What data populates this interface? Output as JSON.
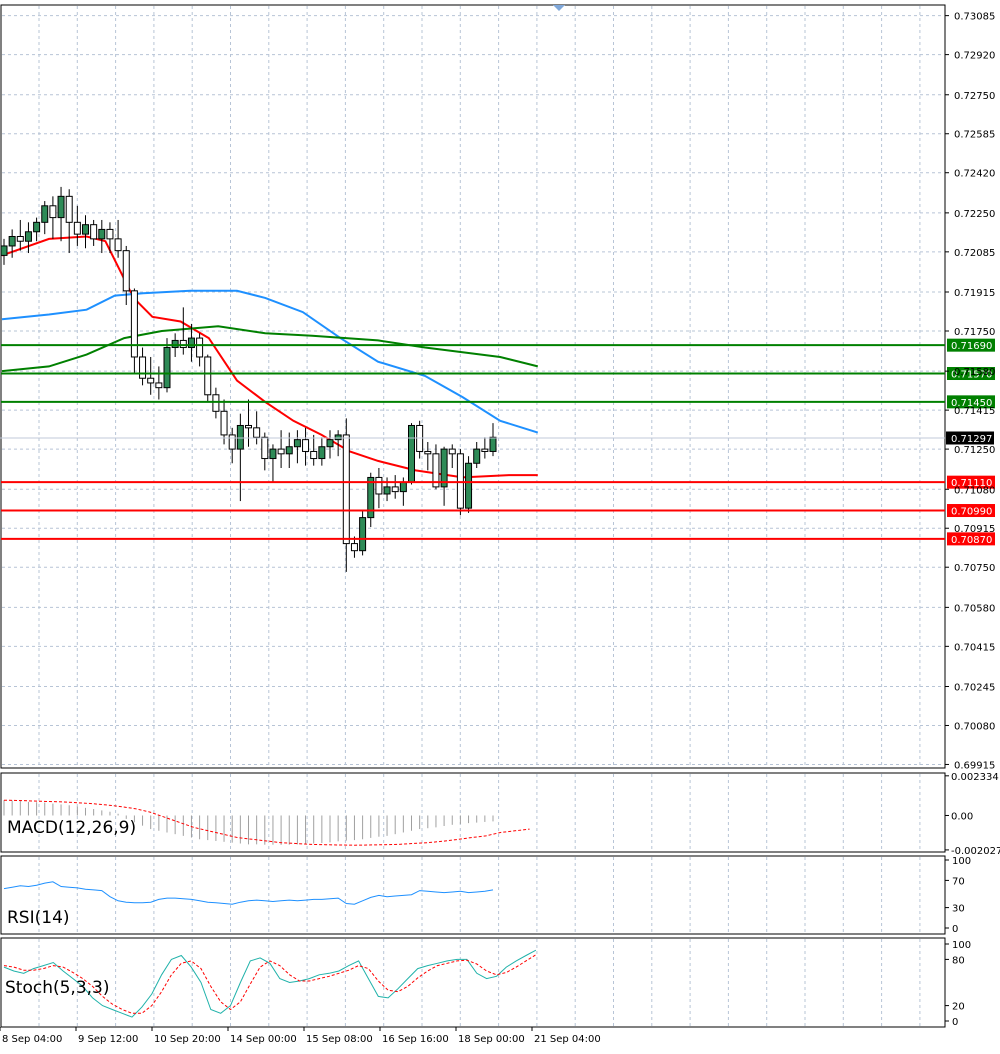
{
  "chart_data": {
    "type": "candlestick",
    "price_axis": {
      "ticks": [
        "0.73085",
        "0.72920",
        "0.72750",
        "0.72585",
        "0.72420",
        "0.72250",
        "0.72085",
        "0.71915",
        "0.71750",
        "0.71580",
        "0.71415",
        "0.71250",
        "0.71080",
        "0.70915",
        "0.70750",
        "0.70580",
        "0.70415",
        "0.70245",
        "0.70080",
        "0.69915"
      ],
      "range": [
        0.699,
        0.7313
      ]
    },
    "time_axis": {
      "labels": [
        "8 Sep 04:00",
        "9 Sep 12:00",
        "10 Sep 20:00",
        "14 Sep 00:00",
        "15 Sep 08:00",
        "16 Sep 16:00",
        "18 Sep 00:00",
        "21 Sep 04:00"
      ]
    },
    "current_price": "0.71297",
    "levels": [
      {
        "label": "0.71690",
        "value": 0.7169,
        "color": "#008000"
      },
      {
        "label": "0.71570",
        "value": 0.7157,
        "color": "#008000"
      },
      {
        "label": "0.71450",
        "value": 0.7145,
        "color": "#008000"
      },
      {
        "label": "0.71110",
        "value": 0.7111,
        "color": "#ff0000"
      },
      {
        "label": "0.70990",
        "value": 0.7099,
        "color": "#ff0000"
      },
      {
        "label": "0.70870",
        "value": 0.7087,
        "color": "#ff0000"
      }
    ],
    "candles": [
      [
        0.7207,
        0.7214,
        0.7203,
        0.7211
      ],
      [
        0.7211,
        0.7218,
        0.7206,
        0.7215
      ],
      [
        0.7215,
        0.7222,
        0.7209,
        0.7213
      ],
      [
        0.7213,
        0.7221,
        0.7208,
        0.7217
      ],
      [
        0.7217,
        0.7223,
        0.7213,
        0.7221
      ],
      [
        0.7221,
        0.723,
        0.7216,
        0.7228
      ],
      [
        0.7228,
        0.7232,
        0.7214,
        0.7223
      ],
      [
        0.7223,
        0.7236,
        0.7213,
        0.7232
      ],
      [
        0.7232,
        0.7235,
        0.7208,
        0.7221
      ],
      [
        0.7221,
        0.7228,
        0.7211,
        0.7216
      ],
      [
        0.7216,
        0.7224,
        0.721,
        0.722
      ],
      [
        0.722,
        0.7222,
        0.7211,
        0.7214
      ],
      [
        0.7214,
        0.7222,
        0.7208,
        0.7218
      ],
      [
        0.7218,
        0.7221,
        0.7208,
        0.7214
      ],
      [
        0.7214,
        0.7222,
        0.7206,
        0.7209
      ],
      [
        0.7209,
        0.7211,
        0.7186,
        0.7192
      ],
      [
        0.7192,
        0.7193,
        0.7157,
        0.7164
      ],
      [
        0.7164,
        0.7168,
        0.7152,
        0.7155
      ],
      [
        0.7155,
        0.7164,
        0.7148,
        0.7153
      ],
      [
        0.7153,
        0.716,
        0.7146,
        0.7151
      ],
      [
        0.7151,
        0.7172,
        0.7149,
        0.7168
      ],
      [
        0.7168,
        0.7174,
        0.7164,
        0.7171
      ],
      [
        0.7171,
        0.7185,
        0.7165,
        0.7168
      ],
      [
        0.7168,
        0.7178,
        0.7162,
        0.7172
      ],
      [
        0.7172,
        0.7174,
        0.716,
        0.7164
      ],
      [
        0.7164,
        0.7165,
        0.7145,
        0.7148
      ],
      [
        0.7148,
        0.7151,
        0.7138,
        0.7141
      ],
      [
        0.7141,
        0.7146,
        0.7127,
        0.7131
      ],
      [
        0.7131,
        0.7134,
        0.7119,
        0.7125
      ],
      [
        0.7125,
        0.714,
        0.7103,
        0.7135
      ],
      [
        0.7135,
        0.7146,
        0.7126,
        0.7134
      ],
      [
        0.7134,
        0.7141,
        0.7127,
        0.713
      ],
      [
        0.713,
        0.7132,
        0.7116,
        0.7121
      ],
      [
        0.7121,
        0.7127,
        0.7111,
        0.7125
      ],
      [
        0.7125,
        0.7133,
        0.7117,
        0.7123
      ],
      [
        0.7123,
        0.7132,
        0.7117,
        0.7126
      ],
      [
        0.7126,
        0.7133,
        0.7119,
        0.7129
      ],
      [
        0.7129,
        0.7134,
        0.7118,
        0.7124
      ],
      [
        0.7124,
        0.7131,
        0.7118,
        0.7121
      ],
      [
        0.7121,
        0.713,
        0.7118,
        0.7126
      ],
      [
        0.7126,
        0.7133,
        0.7121,
        0.7129
      ],
      [
        0.7129,
        0.7133,
        0.7122,
        0.7131
      ],
      [
        0.7131,
        0.7138,
        0.7073,
        0.7085
      ],
      [
        0.7085,
        0.7088,
        0.7079,
        0.7082
      ],
      [
        0.7082,
        0.7099,
        0.708,
        0.7096
      ],
      [
        0.7096,
        0.7115,
        0.7092,
        0.7113
      ],
      [
        0.7113,
        0.7117,
        0.71,
        0.7106
      ],
      [
        0.7106,
        0.7113,
        0.7103,
        0.7109
      ],
      [
        0.7109,
        0.7114,
        0.7104,
        0.7107
      ],
      [
        0.7107,
        0.7113,
        0.7101,
        0.7111
      ],
      [
        0.7111,
        0.7136,
        0.711,
        0.7135
      ],
      [
        0.7135,
        0.7137,
        0.7121,
        0.7124
      ],
      [
        0.7124,
        0.7128,
        0.7116,
        0.7123
      ],
      [
        0.7123,
        0.7127,
        0.7108,
        0.7109
      ],
      [
        0.7109,
        0.7126,
        0.7101,
        0.7125
      ],
      [
        0.7125,
        0.7127,
        0.7117,
        0.7123
      ],
      [
        0.7123,
        0.7125,
        0.7097,
        0.71
      ],
      [
        0.71,
        0.7122,
        0.7098,
        0.7119
      ],
      [
        0.7119,
        0.7128,
        0.7117,
        0.7125
      ],
      [
        0.7125,
        0.713,
        0.7121,
        0.7124
      ],
      [
        0.7124,
        0.7136,
        0.7122,
        0.713
      ]
    ],
    "moving_averages": [
      {
        "color": "#ff0000",
        "points": [
          [
            0,
            0.7207
          ],
          [
            10,
            0.7214
          ],
          [
            18,
            0.7215
          ],
          [
            22,
            0.7213
          ],
          [
            28,
            0.7189
          ],
          [
            32,
            0.7181
          ],
          [
            38,
            0.7179
          ],
          [
            44,
            0.7172
          ],
          [
            50,
            0.7154
          ],
          [
            56,
            0.7145
          ],
          [
            62,
            0.7137
          ],
          [
            68,
            0.7131
          ],
          [
            74,
            0.7124
          ],
          [
            80,
            0.712
          ],
          [
            88,
            0.7116
          ],
          [
            98,
            0.7113
          ],
          [
            108,
            0.7114
          ],
          [
            114,
            0.7114
          ]
        ]
      },
      {
        "color": "#1e90ff",
        "points": [
          [
            0,
            0.718
          ],
          [
            10,
            0.7182
          ],
          [
            18,
            0.7184
          ],
          [
            24,
            0.719
          ],
          [
            30,
            0.7191
          ],
          [
            40,
            0.7192
          ],
          [
            50,
            0.7192
          ],
          [
            56,
            0.7189
          ],
          [
            64,
            0.7183
          ],
          [
            72,
            0.7172
          ],
          [
            80,
            0.7162
          ],
          [
            90,
            0.7156
          ],
          [
            98,
            0.7147
          ],
          [
            106,
            0.7137
          ],
          [
            114,
            0.7132
          ]
        ]
      },
      {
        "color": "#008000",
        "points": [
          [
            0,
            0.7158
          ],
          [
            10,
            0.716
          ],
          [
            18,
            0.7165
          ],
          [
            26,
            0.7172
          ],
          [
            34,
            0.7175
          ],
          [
            46,
            0.7177
          ],
          [
            56,
            0.7174
          ],
          [
            66,
            0.7173
          ],
          [
            80,
            0.7171
          ],
          [
            90,
            0.7168
          ],
          [
            98,
            0.7166
          ],
          [
            106,
            0.7164
          ],
          [
            114,
            0.716
          ]
        ]
      }
    ],
    "macd": {
      "title": "MACD(12,26,9)",
      "ticks": [
        "0.002334",
        "0.00",
        "-0.002027"
      ],
      "range": [
        -0.00215,
        0.0025
      ],
      "histogram": [
        0.0009,
        0.00088,
        0.00085,
        0.0008,
        0.00078,
        0.00076,
        0.0007,
        0.00065,
        0.0006,
        0.00052,
        0.00045,
        0.00038,
        0.0003,
        0.00022,
        0.0001,
        -0.0002,
        -0.0004,
        -0.0006,
        -0.0008,
        -0.0009,
        -0.001,
        -0.0011,
        -0.0012,
        -0.0013,
        -0.0014,
        -0.00145,
        -0.0015,
        -0.00155,
        -0.0016,
        -0.00165,
        -0.0017,
        -0.0017,
        -0.00172,
        -0.00172,
        -0.00173,
        -0.00172,
        -0.0017,
        -0.00168,
        -0.00165,
        -0.00162,
        -0.00158,
        -0.00152,
        -0.00148,
        -0.00145,
        -0.0014,
        -0.00132,
        -0.00125,
        -0.0012,
        -0.0011,
        -0.001,
        -0.0009,
        -0.0008,
        -0.00075,
        -0.0007,
        -0.00062,
        -0.00055,
        -0.0005,
        -0.00045,
        -0.00042,
        -0.00038,
        -0.00035
      ],
      "signal": [
        0.0009,
        0.00088,
        0.00085,
        0.00082,
        0.0008,
        0.00075,
        0.0007,
        0.00062,
        0.00052,
        0.0004,
        0.0002,
        -0.0001,
        -0.0004,
        -0.0007,
        -0.0009,
        -0.0011,
        -0.0013,
        -0.0014,
        -0.0015,
        -0.0016,
        -0.00165,
        -0.0017,
        -0.00172,
        -0.00174,
        -0.00175,
        -0.00174,
        -0.00172,
        -0.0017,
        -0.00165,
        -0.0016,
        -0.00152,
        -0.00142,
        -0.0013,
        -0.0012,
        -0.001,
        -0.0009,
        -0.0008
      ]
    },
    "rsi": {
      "title": "RSI(14)",
      "ticks": [
        "100",
        "70",
        "30",
        "0"
      ],
      "range": [
        0,
        100
      ],
      "values": [
        58,
        60,
        62,
        61,
        63,
        66,
        68,
        61,
        60,
        59,
        57,
        56,
        55,
        46,
        40,
        38,
        37,
        37,
        38,
        42,
        44,
        44,
        43,
        42,
        40,
        38,
        37,
        36,
        35,
        38,
        40,
        41,
        40,
        39,
        40,
        41,
        40,
        41,
        42,
        42,
        43,
        44,
        36,
        35,
        40,
        45,
        48,
        46,
        47,
        48,
        49,
        55,
        54,
        53,
        52,
        53,
        54,
        52,
        53,
        54,
        56
      ]
    },
    "stoch": {
      "title": "Stoch(5,3,3)",
      "ticks": [
        "100",
        "80",
        "20",
        "0"
      ],
      "range": [
        0,
        100
      ],
      "k": [
        70,
        65,
        62,
        68,
        72,
        76,
        65,
        55,
        45,
        30,
        20,
        15,
        10,
        5,
        18,
        35,
        60,
        80,
        85,
        70,
        50,
        15,
        10,
        20,
        50,
        78,
        82,
        75,
        55,
        50,
        52,
        55,
        60,
        62,
        65,
        72,
        78,
        55,
        32,
        30,
        42,
        55,
        68,
        72,
        75,
        78,
        80,
        80,
        62,
        55,
        58,
        70,
        78,
        85,
        92
      ],
      "d": [
        72,
        70,
        66,
        66,
        68,
        72,
        70,
        63,
        55,
        45,
        32,
        22,
        15,
        10,
        10,
        20,
        38,
        60,
        75,
        78,
        68,
        45,
        25,
        15,
        25,
        48,
        70,
        78,
        72,
        60,
        52,
        52,
        55,
        58,
        62,
        66,
        72,
        68,
        52,
        40,
        38,
        45,
        56,
        65,
        72,
        75,
        78,
        79,
        74,
        65,
        60,
        63,
        70,
        78,
        86
      ]
    }
  }
}
